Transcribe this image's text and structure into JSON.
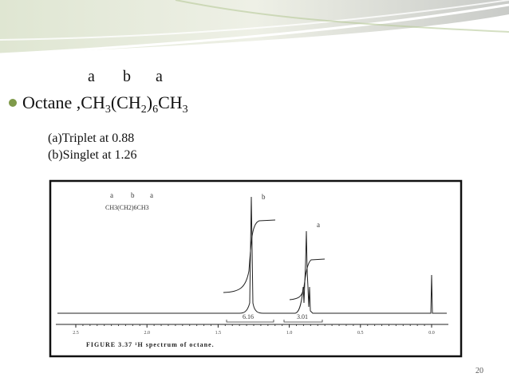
{
  "slide": {
    "header_letters": [
      "a",
      "b",
      "a"
    ],
    "bullet": {
      "parts": [
        "Octane ,CH",
        "3",
        "(CH",
        "2",
        ")",
        "6",
        "CH",
        "3"
      ]
    },
    "lines": [
      "(a)Triplet at 0.88",
      "(b)Singlet at 1.26"
    ],
    "figure": {
      "formula_letters": [
        "a",
        "b",
        "a"
      ],
      "formula": "CH3(CH2)6CH3",
      "peak_labels": [
        "b",
        "a"
      ],
      "integrals": [
        "6.16",
        "3.01"
      ],
      "axis_labels": [
        "2.5",
        "2.0",
        "1.5",
        "1.0",
        "0.5",
        "0.0"
      ],
      "caption": "FIGURE 3.37 ¹H spectrum of octane."
    },
    "page_number": "20"
  }
}
